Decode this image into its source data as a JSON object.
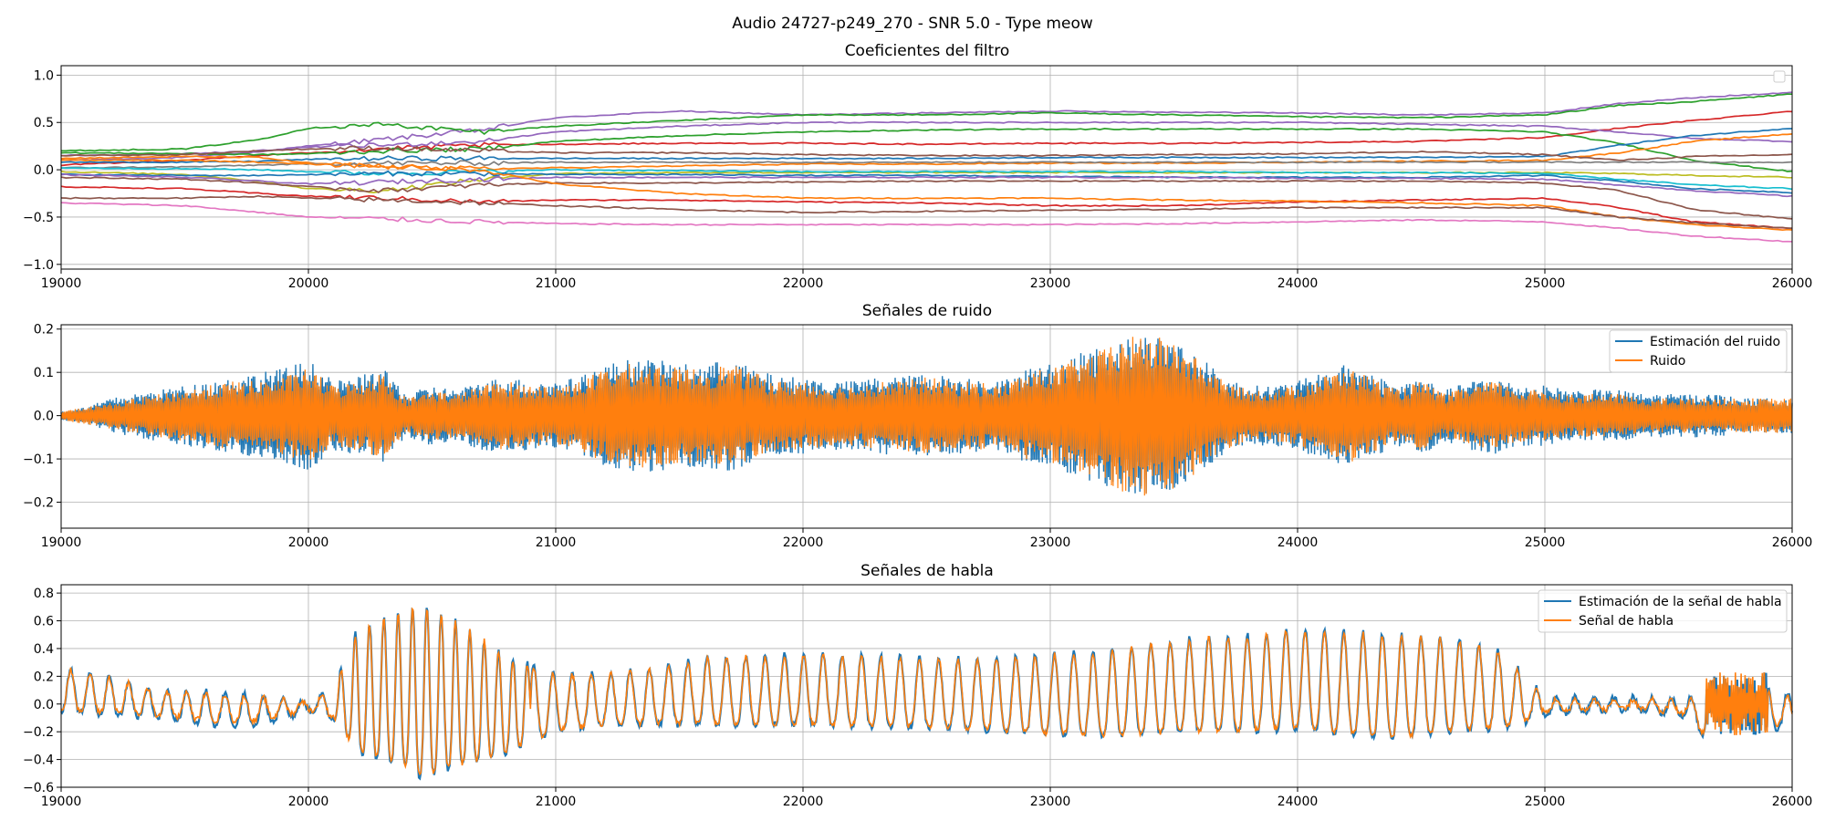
{
  "figure": {
    "suptitle": "Audio 24727-p249_270 - SNR 5.0 - Type meow"
  },
  "colors": {
    "blue": "#1f77b4",
    "orange": "#ff7f0e",
    "green": "#2ca02c",
    "red": "#d62728",
    "purple": "#9467bd",
    "brown": "#8c564b",
    "pink": "#e377c2",
    "gray": "#7f7f7f",
    "olive": "#bcbd22",
    "cyan": "#17becf"
  },
  "chart_data": [
    {
      "type": "line",
      "title": "Coeficientes del filtro",
      "xlim": [
        19000,
        26000
      ],
      "ylim": [
        -1.05,
        1.1
      ],
      "xticks": [
        19000,
        20000,
        21000,
        22000,
        23000,
        24000,
        25000,
        26000
      ],
      "xtick_labels": [
        "19000",
        "20000",
        "21000",
        "22000",
        "23000",
        "24000",
        "25000",
        "26000"
      ],
      "yticks": [
        -1.0,
        -0.5,
        0.0,
        0.5,
        1.0
      ],
      "ytick_labels": [
        "−1.0",
        "−0.5",
        "0.0",
        "0.5",
        "1.0"
      ],
      "grid": true,
      "legend": "top-right (empty)",
      "x": [
        19000,
        19500,
        19800,
        20000,
        20300,
        20700,
        21000,
        21500,
        22000,
        22500,
        23000,
        23500,
        24000,
        24500,
        25000,
        25300,
        25600,
        26000
      ],
      "series": [
        {
          "color": "purple",
          "values": [
            0.1,
            0.13,
            0.19,
            0.25,
            0.32,
            0.42,
            0.55,
            0.62,
            0.58,
            0.6,
            0.62,
            0.61,
            0.6,
            0.58,
            0.6,
            0.7,
            0.76,
            0.82
          ]
        },
        {
          "color": "green",
          "values": [
            0.2,
            0.22,
            0.32,
            0.44,
            0.48,
            0.4,
            0.46,
            0.52,
            0.58,
            0.58,
            0.6,
            0.58,
            0.56,
            0.55,
            0.58,
            0.68,
            0.72,
            0.8
          ]
        },
        {
          "color": "red",
          "values": [
            0.05,
            0.1,
            0.15,
            0.18,
            0.22,
            0.26,
            0.27,
            0.28,
            0.28,
            0.27,
            0.28,
            0.28,
            0.29,
            0.3,
            0.34,
            0.44,
            0.52,
            0.62
          ]
        },
        {
          "color": "purple",
          "values": [
            0.15,
            0.17,
            0.2,
            0.24,
            0.26,
            0.3,
            0.4,
            0.46,
            0.5,
            0.5,
            0.5,
            0.5,
            0.5,
            0.48,
            0.46,
            0.4,
            0.33,
            0.3
          ]
        },
        {
          "color": "green",
          "values": [
            0.18,
            0.17,
            0.16,
            0.17,
            0.2,
            0.22,
            0.3,
            0.36,
            0.4,
            0.42,
            0.43,
            0.43,
            0.43,
            0.43,
            0.4,
            0.28,
            0.1,
            -0.02
          ]
        },
        {
          "color": "blue",
          "values": [
            0.08,
            0.08,
            0.09,
            0.11,
            0.12,
            0.12,
            0.12,
            0.12,
            0.12,
            0.12,
            0.13,
            0.13,
            0.13,
            0.13,
            0.14,
            0.26,
            0.36,
            0.44
          ]
        },
        {
          "color": "orange",
          "values": [
            0.12,
            0.14,
            0.13,
            0.07,
            0.03,
            0.01,
            0.02,
            0.04,
            0.06,
            0.06,
            0.07,
            0.07,
            0.08,
            0.09,
            0.1,
            0.18,
            0.3,
            0.38
          ]
        },
        {
          "color": "brown",
          "values": [
            0.15,
            0.16,
            0.2,
            0.22,
            0.23,
            0.2,
            0.18,
            0.18,
            0.16,
            0.15,
            0.15,
            0.16,
            0.17,
            0.19,
            0.16,
            0.1,
            0.14,
            0.16
          ]
        },
        {
          "color": "gray",
          "values": [
            0.02,
            0.03,
            0.05,
            0.06,
            0.07,
            0.07,
            0.08,
            0.08,
            0.08,
            0.08,
            0.08,
            0.08,
            0.08,
            0.08,
            0.08,
            0.08,
            0.08,
            0.08
          ]
        },
        {
          "color": "olive",
          "values": [
            -0.02,
            -0.05,
            -0.12,
            -0.2,
            -0.22,
            -0.1,
            -0.04,
            -0.03,
            -0.03,
            -0.03,
            -0.03,
            -0.03,
            -0.03,
            -0.03,
            -0.03,
            -0.04,
            -0.06,
            -0.08
          ]
        },
        {
          "color": "cyan",
          "values": [
            0.02,
            0.01,
            0.0,
            -0.02,
            -0.04,
            -0.02,
            0.0,
            -0.01,
            -0.02,
            -0.02,
            -0.02,
            -0.02,
            -0.03,
            -0.03,
            -0.04,
            -0.1,
            -0.16,
            -0.2
          ]
        },
        {
          "color": "blue",
          "values": [
            -0.05,
            -0.06,
            -0.06,
            -0.05,
            -0.04,
            -0.04,
            -0.05,
            -0.05,
            -0.06,
            -0.06,
            -0.07,
            -0.08,
            -0.08,
            -0.08,
            -0.06,
            -0.12,
            -0.2,
            -0.24
          ]
        },
        {
          "color": "brown",
          "values": [
            -0.08,
            -0.1,
            -0.14,
            -0.18,
            -0.22,
            -0.16,
            -0.14,
            -0.14,
            -0.13,
            -0.12,
            -0.12,
            -0.12,
            -0.12,
            -0.12,
            -0.14,
            -0.22,
            -0.42,
            -0.52
          ]
        },
        {
          "color": "purple",
          "values": [
            -0.05,
            -0.08,
            -0.12,
            -0.15,
            -0.13,
            -0.1,
            -0.08,
            -0.08,
            -0.08,
            -0.08,
            -0.08,
            -0.08,
            -0.09,
            -0.09,
            -0.1,
            -0.16,
            -0.22,
            -0.28
          ]
        },
        {
          "color": "red",
          "values": [
            -0.18,
            -0.2,
            -0.25,
            -0.28,
            -0.3,
            -0.34,
            -0.32,
            -0.32,
            -0.34,
            -0.35,
            -0.38,
            -0.38,
            -0.34,
            -0.32,
            -0.3,
            -0.4,
            -0.55,
            -0.62
          ]
        },
        {
          "color": "orange",
          "values": [
            0.1,
            0.1,
            0.08,
            0.06,
            0.04,
            0.0,
            -0.15,
            -0.25,
            -0.3,
            -0.3,
            -0.3,
            -0.32,
            -0.33,
            -0.35,
            -0.38,
            -0.5,
            -0.58,
            -0.64
          ]
        },
        {
          "color": "brown",
          "values": [
            -0.3,
            -0.3,
            -0.28,
            -0.3,
            -0.32,
            -0.35,
            -0.38,
            -0.42,
            -0.45,
            -0.44,
            -0.43,
            -0.42,
            -0.4,
            -0.4,
            -0.4,
            -0.5,
            -0.56,
            -0.62
          ]
        },
        {
          "color": "pink",
          "values": [
            -0.35,
            -0.38,
            -0.45,
            -0.5,
            -0.52,
            -0.55,
            -0.57,
            -0.58,
            -0.58,
            -0.58,
            -0.58,
            -0.57,
            -0.55,
            -0.53,
            -0.55,
            -0.62,
            -0.7,
            -0.76
          ]
        }
      ]
    },
    {
      "type": "line",
      "title": "Señales de ruido",
      "xlim": [
        19000,
        26000
      ],
      "ylim": [
        -0.26,
        0.21
      ],
      "xticks": [
        19000,
        20000,
        21000,
        22000,
        23000,
        24000,
        25000,
        26000
      ],
      "xtick_labels": [
        "19000",
        "20000",
        "21000",
        "22000",
        "23000",
        "24000",
        "25000",
        "26000"
      ],
      "yticks": [
        -0.2,
        -0.1,
        0.0,
        0.1,
        0.2
      ],
      "ytick_labels": [
        "−0.2",
        "−0.1",
        "0.0",
        "0.1",
        "0.2"
      ],
      "grid": true,
      "legend": "top-right",
      "x": [
        19000,
        19100,
        19200,
        19300,
        19400,
        19500,
        19600,
        19700,
        19800,
        19900,
        20000,
        20100,
        20200,
        20300,
        20400,
        20500,
        20600,
        20700,
        20800,
        20900,
        21000,
        21100,
        21200,
        21300,
        21400,
        21500,
        21600,
        21700,
        21800,
        21900,
        22000,
        22100,
        22200,
        22300,
        22400,
        22500,
        22600,
        22700,
        22800,
        22900,
        23000,
        23100,
        23200,
        23300,
        23400,
        23500,
        23600,
        23700,
        23800,
        23900,
        24000,
        24100,
        24200,
        24300,
        24400,
        24500,
        24600,
        24700,
        24800,
        24900,
        25000,
        25100,
        25200,
        25300,
        25400,
        25500,
        25600,
        25700,
        25800,
        25900,
        26000
      ],
      "series": [
        {
          "name": "Estimación del ruido",
          "color": "blue",
          "amplitude": [
            0.01,
            0.02,
            0.04,
            0.05,
            0.06,
            0.07,
            0.08,
            0.09,
            0.1,
            0.11,
            0.13,
            0.08,
            0.09,
            0.11,
            0.05,
            0.07,
            0.06,
            0.08,
            0.09,
            0.08,
            0.08,
            0.09,
            0.12,
            0.13,
            0.13,
            0.12,
            0.12,
            0.13,
            0.11,
            0.09,
            0.09,
            0.08,
            0.08,
            0.09,
            0.09,
            0.1,
            0.09,
            0.09,
            0.08,
            0.11,
            0.12,
            0.14,
            0.16,
            0.18,
            0.19,
            0.18,
            0.14,
            0.09,
            0.07,
            0.07,
            0.08,
            0.1,
            0.12,
            0.1,
            0.07,
            0.09,
            0.06,
            0.08,
            0.09,
            0.07,
            0.07,
            0.06,
            0.06,
            0.06,
            0.05,
            0.05,
            0.05,
            0.05,
            0.04,
            0.04,
            0.04
          ]
        },
        {
          "name": "Ruido",
          "color": "orange",
          "amplitude": [
            0.01,
            0.02,
            0.03,
            0.04,
            0.05,
            0.06,
            0.07,
            0.08,
            0.08,
            0.09,
            0.11,
            0.07,
            0.08,
            0.1,
            0.04,
            0.06,
            0.05,
            0.07,
            0.08,
            0.07,
            0.07,
            0.08,
            0.11,
            0.12,
            0.12,
            0.11,
            0.11,
            0.12,
            0.1,
            0.08,
            0.08,
            0.07,
            0.07,
            0.08,
            0.08,
            0.09,
            0.08,
            0.08,
            0.07,
            0.1,
            0.11,
            0.13,
            0.15,
            0.18,
            0.19,
            0.17,
            0.13,
            0.08,
            0.06,
            0.06,
            0.07,
            0.09,
            0.11,
            0.09,
            0.06,
            0.08,
            0.05,
            0.07,
            0.08,
            0.06,
            0.06,
            0.05,
            0.05,
            0.05,
            0.04,
            0.04,
            0.04,
            0.04,
            0.04,
            0.04,
            0.04
          ]
        }
      ]
    },
    {
      "type": "line",
      "title": "Señales de habla",
      "xlim": [
        19000,
        26000
      ],
      "ylim": [
        -0.6,
        0.86
      ],
      "xticks": [
        19000,
        20000,
        21000,
        22000,
        23000,
        24000,
        25000,
        26000
      ],
      "xtick_labels": [
        "19000",
        "20000",
        "21000",
        "22000",
        "23000",
        "24000",
        "25000",
        "26000"
      ],
      "yticks": [
        -0.6,
        -0.4,
        -0.2,
        0.0,
        0.2,
        0.4,
        0.6,
        0.8
      ],
      "ytick_labels": [
        "−0.6",
        "−0.4",
        "−0.2",
        "0.0",
        "0.2",
        "0.4",
        "0.6",
        "0.8"
      ],
      "grid": true,
      "legend": "top-right",
      "x": [
        19000,
        19200,
        19400,
        19600,
        19800,
        20000,
        20100,
        20200,
        20300,
        20400,
        20450,
        20600,
        20800,
        21000,
        21200,
        21400,
        21600,
        21800,
        22000,
        22200,
        22400,
        22600,
        22800,
        23000,
        23200,
        23400,
        23600,
        23800,
        24000,
        24200,
        24400,
        24600,
        24800,
        24900,
        25000,
        25200,
        25400,
        25600,
        25700,
        25800,
        26000
      ],
      "series": [
        {
          "name": "Estimación de la señal de habla",
          "color": "blue",
          "peak": [
            0.27,
            0.2,
            0.1,
            0.1,
            0.06,
            0.03,
            0.12,
            0.55,
            0.62,
            0.68,
            0.73,
            0.6,
            0.35,
            0.22,
            0.22,
            0.26,
            0.33,
            0.35,
            0.36,
            0.36,
            0.34,
            0.33,
            0.34,
            0.36,
            0.38,
            0.44,
            0.48,
            0.5,
            0.54,
            0.52,
            0.5,
            0.48,
            0.4,
            0.25,
            0.05,
            0.05,
            0.05,
            0.05,
            0.2,
            0.15,
            0.08
          ],
          "trough": [
            -0.05,
            -0.08,
            -0.1,
            -0.15,
            -0.16,
            -0.05,
            -0.1,
            -0.35,
            -0.4,
            -0.45,
            -0.53,
            -0.45,
            -0.35,
            -0.2,
            -0.15,
            -0.15,
            -0.15,
            -0.15,
            -0.15,
            -0.16,
            -0.17,
            -0.18,
            -0.2,
            -0.22,
            -0.23,
            -0.22,
            -0.2,
            -0.2,
            -0.18,
            -0.22,
            -0.24,
            -0.2,
            -0.18,
            -0.15,
            -0.08,
            -0.05,
            -0.05,
            -0.1,
            -0.45,
            -0.25,
            -0.15
          ]
        },
        {
          "name": "Señal de habla",
          "color": "orange",
          "peak": [
            0.26,
            0.19,
            0.09,
            0.08,
            0.05,
            0.02,
            0.11,
            0.54,
            0.61,
            0.67,
            0.72,
            0.6,
            0.34,
            0.21,
            0.21,
            0.25,
            0.32,
            0.34,
            0.35,
            0.35,
            0.33,
            0.32,
            0.33,
            0.35,
            0.37,
            0.43,
            0.47,
            0.49,
            0.53,
            0.51,
            0.49,
            0.47,
            0.39,
            0.24,
            0.04,
            0.03,
            0.03,
            0.03,
            0.18,
            0.12,
            0.05
          ],
          "trough": [
            -0.04,
            -0.06,
            -0.08,
            -0.12,
            -0.12,
            -0.04,
            -0.09,
            -0.34,
            -0.39,
            -0.44,
            -0.52,
            -0.44,
            -0.34,
            -0.19,
            -0.14,
            -0.14,
            -0.14,
            -0.14,
            -0.14,
            -0.15,
            -0.16,
            -0.17,
            -0.19,
            -0.21,
            -0.22,
            -0.21,
            -0.19,
            -0.19,
            -0.17,
            -0.21,
            -0.23,
            -0.19,
            -0.17,
            -0.14,
            -0.06,
            -0.04,
            -0.04,
            -0.08,
            -0.44,
            -0.22,
            -0.12
          ]
        }
      ]
    }
  ]
}
